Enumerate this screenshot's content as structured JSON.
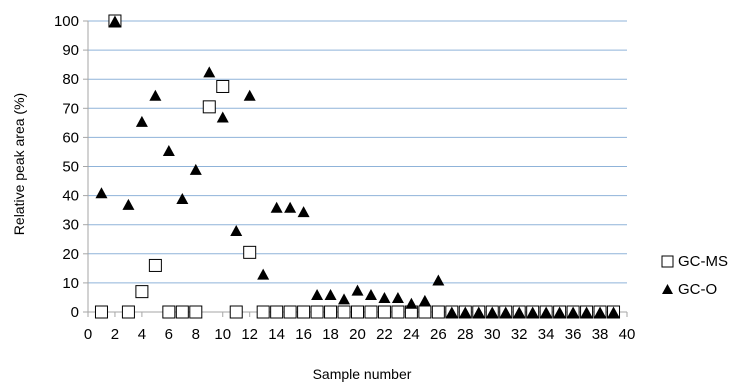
{
  "chart_data": {
    "type": "scatter",
    "xlabel": "Sample number",
    "ylabel": "Relative peak area (%)",
    "xlim": [
      0,
      40
    ],
    "ylim": [
      0,
      100
    ],
    "xticks": [
      0,
      2,
      4,
      6,
      8,
      10,
      12,
      14,
      16,
      18,
      20,
      22,
      24,
      26,
      28,
      30,
      32,
      34,
      36,
      38,
      40
    ],
    "yticks": [
      0,
      10,
      20,
      30,
      40,
      50,
      60,
      70,
      80,
      90,
      100
    ],
    "grid": "horizontal",
    "legend_position": "right",
    "series": [
      {
        "name": "GC-MS",
        "marker": "open-square",
        "color": "#000000",
        "points": [
          [
            1,
            0
          ],
          [
            2,
            100
          ],
          [
            3,
            0
          ],
          [
            4,
            7
          ],
          [
            5,
            16
          ],
          [
            6,
            0
          ],
          [
            7,
            0
          ],
          [
            8,
            0
          ],
          [
            9,
            70.5
          ],
          [
            10,
            77.5
          ],
          [
            11,
            0
          ],
          [
            12,
            20.5
          ],
          [
            13,
            0
          ],
          [
            14,
            0
          ],
          [
            15,
            0
          ],
          [
            16,
            0
          ],
          [
            17,
            0
          ],
          [
            18,
            0
          ],
          [
            19,
            0
          ],
          [
            20,
            0
          ],
          [
            21,
            0
          ],
          [
            22,
            0
          ],
          [
            23,
            0
          ],
          [
            24,
            0
          ],
          [
            25,
            0
          ],
          [
            26,
            0
          ],
          [
            27,
            0
          ],
          [
            28,
            0
          ],
          [
            29,
            0
          ],
          [
            30,
            0
          ],
          [
            31,
            0
          ],
          [
            32,
            0
          ],
          [
            33,
            0
          ],
          [
            34,
            0
          ],
          [
            35,
            0
          ],
          [
            36,
            0
          ],
          [
            37,
            0
          ],
          [
            38,
            0
          ],
          [
            39,
            0
          ]
        ]
      },
      {
        "name": "GC-O",
        "marker": "filled-triangle",
        "color": "#000000",
        "points": [
          [
            1,
            41
          ],
          [
            2,
            100
          ],
          [
            3,
            37
          ],
          [
            4,
            65.5
          ],
          [
            5,
            74.5
          ],
          [
            6,
            55.5
          ],
          [
            7,
            39
          ],
          [
            8,
            49
          ],
          [
            9,
            82.5
          ],
          [
            10,
            67
          ],
          [
            11,
            28
          ],
          [
            12,
            74.5
          ],
          [
            13,
            13
          ],
          [
            14,
            36
          ],
          [
            15,
            36
          ],
          [
            16,
            34.5
          ],
          [
            17,
            6
          ],
          [
            18,
            6
          ],
          [
            19,
            4.5
          ],
          [
            20,
            7.5
          ],
          [
            21,
            6
          ],
          [
            22,
            5
          ],
          [
            23,
            5
          ],
          [
            24,
            3
          ],
          [
            25,
            4
          ],
          [
            26,
            11
          ],
          [
            27,
            0
          ],
          [
            28,
            0
          ],
          [
            29,
            0
          ],
          [
            30,
            0
          ],
          [
            31,
            0
          ],
          [
            32,
            0
          ],
          [
            33,
            0
          ],
          [
            34,
            0
          ],
          [
            35,
            0
          ],
          [
            36,
            0
          ],
          [
            37,
            0
          ],
          [
            38,
            0
          ],
          [
            39,
            0
          ]
        ]
      }
    ]
  }
}
